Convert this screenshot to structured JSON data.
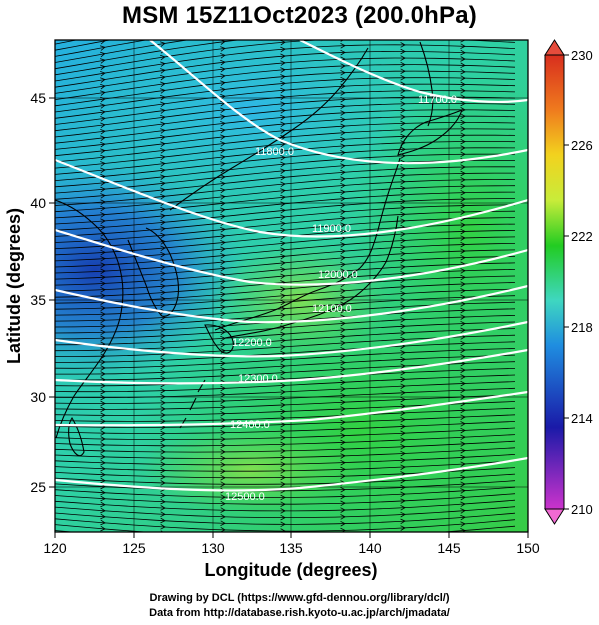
{
  "title": "MSM 15Z11Oct2023 (200.0hPa)",
  "axes": {
    "xlabel": "Longitude (degrees)",
    "ylabel": "Latitude  (degrees)",
    "xticks": [
      "120",
      "125",
      "130",
      "135",
      "140",
      "145",
      "150"
    ],
    "yticks": [
      "25",
      "30",
      "35",
      "40",
      "45"
    ]
  },
  "colorbar": {
    "labels": [
      "210",
      "214",
      "218",
      "222",
      "226",
      "230"
    ],
    "colors": [
      "#cc33cc",
      "#1a1aa8",
      "#1f8de0",
      "#3fd7c0",
      "#22cc22",
      "#c8ec3a",
      "#f2d21e",
      "#ef7a1e",
      "#d82e1e"
    ]
  },
  "contour_labels": [
    "11700.0",
    "11800.0",
    "11900.0",
    "12000.0",
    "12100.0",
    "12200.0",
    "12300.0",
    "12400.0",
    "12500.0"
  ],
  "credits": {
    "line1": "Drawing by DCL (https://www.gfd-dennou.org/library/dcl/)",
    "line2": "Data from http://database.rish.kyoto-u.ac.jp/arch/jmadata/"
  }
}
